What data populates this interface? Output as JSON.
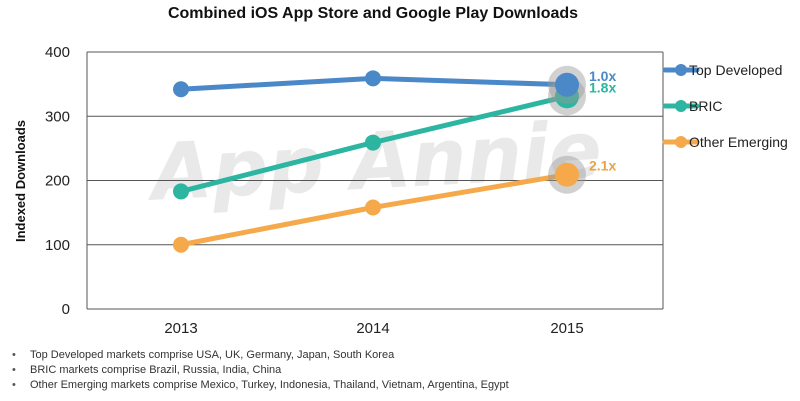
{
  "chart_data": {
    "type": "line",
    "title": "Combined iOS App Store and Google Play Downloads",
    "xlabel": "",
    "ylabel": "Indexed Downloads",
    "categories": [
      "2013",
      "2014",
      "2015"
    ],
    "ylim": [
      0,
      400
    ],
    "yticks": [
      0,
      100,
      200,
      300,
      400
    ],
    "grid": true,
    "legend_position": "right",
    "watermark": "App Annie",
    "series": [
      {
        "name": "Top Developed",
        "values": [
          342,
          359,
          349
        ],
        "color": "#4a88c7",
        "multiplier_label": "1.0x",
        "label_color": "#4a88c7"
      },
      {
        "name": "BRIC",
        "values": [
          183,
          259,
          331
        ],
        "color": "#2cb5a0",
        "multiplier_label": "1.8x",
        "label_color": "#2cb5a0"
      },
      {
        "name": "Other Emerging",
        "values": [
          100,
          158,
          209
        ],
        "color": "#f5a94a",
        "multiplier_label": "2.1x",
        "label_color": "#e9a446"
      }
    ]
  },
  "footnotes": [
    "Top Developed markets comprise USA, UK, Germany, Japan, South Korea",
    "BRIC markets comprise Brazil, Russia, India, China",
    "Other Emerging markets comprise Mexico, Turkey, Indonesia, Thailand, Vietnam, Argentina, Egypt"
  ]
}
